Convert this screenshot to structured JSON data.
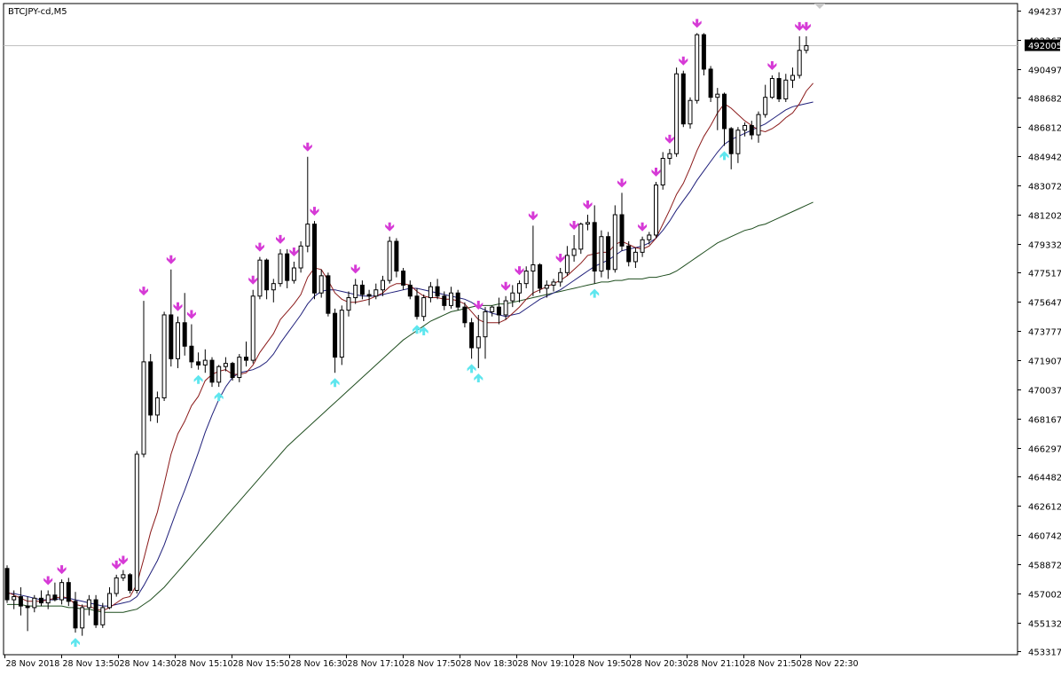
{
  "window": {
    "symbol_label": "BTCJPY-cd,M5"
  },
  "chart_data": {
    "type": "candlestick",
    "symbol": "BTCJPY-cd",
    "timeframe": "M5",
    "current_price": 492005,
    "y_ticks": [
      494237,
      492367,
      490497,
      488682,
      486812,
      484942,
      483072,
      481202,
      479332,
      477517,
      475647,
      473777,
      471907,
      470037,
      468167,
      466297,
      464482,
      462612,
      460742,
      458872,
      457002,
      455132,
      453317
    ],
    "x_ticks": [
      "28 Nov 2018",
      "28 Nov 13:50",
      "28 Nov 14:30",
      "28 Nov 15:10",
      "28 Nov 15:50",
      "28 Nov 16:30",
      "28 Nov 17:10",
      "28 Nov 17:50",
      "28 Nov 18:30",
      "28 Nov 19:10",
      "28 Nov 19:50",
      "28 Nov 20:30",
      "28 Nov 21:10",
      "28 Nov 21:50",
      "28 Nov 22:30"
    ],
    "ylim": [
      453000,
      494600
    ],
    "grid": false,
    "colors": {
      "up_body": "#ffffff",
      "down_body": "#000000",
      "wick": "#000000",
      "ma_fast": "#8b1a1a",
      "ma_mid": "#1f1f7a",
      "ma_slow": "#1e4d1e",
      "arrow_up": "#5ee6ee",
      "arrow_down": "#d63ad6",
      "price_line": "#c0c0c0",
      "price_label_bg": "#000000",
      "price_label_text": "#ffffff"
    },
    "candles": [
      {
        "o": 458600,
        "h": 458800,
        "l": 456400,
        "c": 456600
      },
      {
        "o": 456600,
        "h": 457200,
        "l": 456000,
        "c": 456800
      },
      {
        "o": 456800,
        "h": 457400,
        "l": 455600,
        "c": 456200
      },
      {
        "o": 456200,
        "h": 456800,
        "l": 454600,
        "c": 456100
      },
      {
        "o": 456100,
        "h": 456900,
        "l": 455800,
        "c": 456700
      },
      {
        "o": 456700,
        "h": 457200,
        "l": 456200,
        "c": 456400
      },
      {
        "o": 456400,
        "h": 457200,
        "l": 456000,
        "c": 456900
      },
      {
        "o": 456900,
        "h": 457700,
        "l": 456500,
        "c": 456600
      },
      {
        "o": 456600,
        "h": 457900,
        "l": 456300,
        "c": 457700
      },
      {
        "o": 457700,
        "h": 458000,
        "l": 456200,
        "c": 456500
      },
      {
        "o": 456500,
        "h": 457100,
        "l": 454500,
        "c": 454800
      },
      {
        "o": 454800,
        "h": 456300,
        "l": 454300,
        "c": 456100
      },
      {
        "o": 456100,
        "h": 456900,
        "l": 455600,
        "c": 456600
      },
      {
        "o": 456600,
        "h": 456900,
        "l": 454800,
        "c": 455000
      },
      {
        "o": 455000,
        "h": 456400,
        "l": 454800,
        "c": 456100
      },
      {
        "o": 456100,
        "h": 457400,
        "l": 456000,
        "c": 457000
      },
      {
        "o": 457000,
        "h": 458200,
        "l": 456800,
        "c": 458000
      },
      {
        "o": 458000,
        "h": 458500,
        "l": 457800,
        "c": 458200
      },
      {
        "o": 458200,
        "h": 458300,
        "l": 457000,
        "c": 457200
      },
      {
        "o": 457200,
        "h": 466100,
        "l": 457000,
        "c": 465900
      },
      {
        "o": 465900,
        "h": 475700,
        "l": 465700,
        "c": 471800
      },
      {
        "o": 471800,
        "h": 472300,
        "l": 468000,
        "c": 468400
      },
      {
        "o": 468400,
        "h": 469900,
        "l": 467900,
        "c": 469500
      },
      {
        "o": 469500,
        "h": 475000,
        "l": 469300,
        "c": 474800
      },
      {
        "o": 474800,
        "h": 477700,
        "l": 471500,
        "c": 472000
      },
      {
        "o": 472000,
        "h": 474700,
        "l": 471400,
        "c": 474300
      },
      {
        "o": 474300,
        "h": 476200,
        "l": 472200,
        "c": 472800
      },
      {
        "o": 472800,
        "h": 474200,
        "l": 471400,
        "c": 471800
      },
      {
        "o": 471800,
        "h": 472400,
        "l": 471300,
        "c": 471600
      },
      {
        "o": 471600,
        "h": 472600,
        "l": 471100,
        "c": 471900
      },
      {
        "o": 471900,
        "h": 472100,
        "l": 470200,
        "c": 470500
      },
      {
        "o": 470500,
        "h": 471600,
        "l": 470200,
        "c": 471500
      },
      {
        "o": 471500,
        "h": 472100,
        "l": 471200,
        "c": 471700
      },
      {
        "o": 471700,
        "h": 471800,
        "l": 470600,
        "c": 470800
      },
      {
        "o": 470800,
        "h": 472300,
        "l": 470500,
        "c": 472100
      },
      {
        "o": 472100,
        "h": 473100,
        "l": 471500,
        "c": 471900
      },
      {
        "o": 471900,
        "h": 476400,
        "l": 471700,
        "c": 476000
      },
      {
        "o": 476000,
        "h": 478500,
        "l": 475800,
        "c": 478300
      },
      {
        "o": 478300,
        "h": 478400,
        "l": 475800,
        "c": 476400
      },
      {
        "o": 476400,
        "h": 477100,
        "l": 475600,
        "c": 476800
      },
      {
        "o": 476800,
        "h": 479000,
        "l": 476600,
        "c": 478700
      },
      {
        "o": 478700,
        "h": 479000,
        "l": 476500,
        "c": 477000
      },
      {
        "o": 477000,
        "h": 478200,
        "l": 476800,
        "c": 477800
      },
      {
        "o": 477800,
        "h": 479500,
        "l": 477500,
        "c": 479200
      },
      {
        "o": 479200,
        "h": 484900,
        "l": 478800,
        "c": 480600
      },
      {
        "o": 480600,
        "h": 480800,
        "l": 475800,
        "c": 476200
      },
      {
        "o": 476200,
        "h": 477700,
        "l": 475900,
        "c": 477300
      },
      {
        "o": 477300,
        "h": 477500,
        "l": 474700,
        "c": 474900
      },
      {
        "o": 474900,
        "h": 475200,
        "l": 471100,
        "c": 472100
      },
      {
        "o": 472100,
        "h": 475400,
        "l": 471600,
        "c": 475100
      },
      {
        "o": 475100,
        "h": 476300,
        "l": 474700,
        "c": 475900
      },
      {
        "o": 475900,
        "h": 477100,
        "l": 475500,
        "c": 476700
      },
      {
        "o": 476700,
        "h": 477000,
        "l": 475800,
        "c": 476100
      },
      {
        "o": 476100,
        "h": 476400,
        "l": 475400,
        "c": 476000
      },
      {
        "o": 476000,
        "h": 476800,
        "l": 475800,
        "c": 476400
      },
      {
        "o": 476400,
        "h": 477300,
        "l": 476000,
        "c": 477000
      },
      {
        "o": 477000,
        "h": 479800,
        "l": 476800,
        "c": 479500
      },
      {
        "o": 479500,
        "h": 479700,
        "l": 477200,
        "c": 477600
      },
      {
        "o": 477600,
        "h": 477800,
        "l": 476400,
        "c": 476700
      },
      {
        "o": 476700,
        "h": 477000,
        "l": 475800,
        "c": 476000
      },
      {
        "o": 476000,
        "h": 476500,
        "l": 474500,
        "c": 474700
      },
      {
        "o": 474700,
        "h": 476100,
        "l": 474400,
        "c": 475900
      },
      {
        "o": 475900,
        "h": 476900,
        "l": 475600,
        "c": 476600
      },
      {
        "o": 476600,
        "h": 477100,
        "l": 475800,
        "c": 476000
      },
      {
        "o": 476000,
        "h": 476300,
        "l": 475100,
        "c": 475400
      },
      {
        "o": 475400,
        "h": 476600,
        "l": 475200,
        "c": 476200
      },
      {
        "o": 476200,
        "h": 476400,
        "l": 475100,
        "c": 475300
      },
      {
        "o": 475300,
        "h": 475600,
        "l": 474000,
        "c": 474300
      },
      {
        "o": 474300,
        "h": 474600,
        "l": 472000,
        "c": 472700
      },
      {
        "o": 472700,
        "h": 474800,
        "l": 471400,
        "c": 473400
      },
      {
        "o": 473400,
        "h": 475300,
        "l": 472000,
        "c": 475000
      },
      {
        "o": 475000,
        "h": 475400,
        "l": 474700,
        "c": 475300
      },
      {
        "o": 475300,
        "h": 475900,
        "l": 474200,
        "c": 474800
      },
      {
        "o": 474800,
        "h": 476000,
        "l": 474500,
        "c": 475700
      },
      {
        "o": 475700,
        "h": 476700,
        "l": 475300,
        "c": 476200
      },
      {
        "o": 476200,
        "h": 477000,
        "l": 475600,
        "c": 476800
      },
      {
        "o": 476800,
        "h": 477900,
        "l": 476500,
        "c": 477600
      },
      {
        "o": 477600,
        "h": 480500,
        "l": 476000,
        "c": 478000
      },
      {
        "o": 478000,
        "h": 478100,
        "l": 476200,
        "c": 476500
      },
      {
        "o": 476500,
        "h": 477000,
        "l": 475900,
        "c": 476700
      },
      {
        "o": 476700,
        "h": 477100,
        "l": 476300,
        "c": 476900
      },
      {
        "o": 476900,
        "h": 477800,
        "l": 476600,
        "c": 477500
      },
      {
        "o": 477500,
        "h": 479200,
        "l": 477300,
        "c": 478600
      },
      {
        "o": 478600,
        "h": 479900,
        "l": 478200,
        "c": 479000
      },
      {
        "o": 479000,
        "h": 480700,
        "l": 478700,
        "c": 480600
      },
      {
        "o": 480600,
        "h": 481200,
        "l": 480200,
        "c": 480700
      },
      {
        "o": 480700,
        "h": 481800,
        "l": 476800,
        "c": 477600
      },
      {
        "o": 477600,
        "h": 480200,
        "l": 477200,
        "c": 479800
      },
      {
        "o": 479800,
        "h": 480100,
        "l": 477100,
        "c": 477700
      },
      {
        "o": 477700,
        "h": 481800,
        "l": 477500,
        "c": 481200
      },
      {
        "o": 481200,
        "h": 482600,
        "l": 478900,
        "c": 479200
      },
      {
        "o": 479200,
        "h": 479500,
        "l": 477900,
        "c": 478200
      },
      {
        "o": 478200,
        "h": 479100,
        "l": 477800,
        "c": 478800
      },
      {
        "o": 478800,
        "h": 479800,
        "l": 478500,
        "c": 479600
      },
      {
        "o": 479600,
        "h": 480100,
        "l": 479300,
        "c": 479900
      },
      {
        "o": 479900,
        "h": 483300,
        "l": 479700,
        "c": 483100
      },
      {
        "o": 483100,
        "h": 485200,
        "l": 482800,
        "c": 484800
      },
      {
        "o": 484800,
        "h": 485400,
        "l": 484400,
        "c": 485100
      },
      {
        "o": 485100,
        "h": 490600,
        "l": 484900,
        "c": 490200
      },
      {
        "o": 490200,
        "h": 490400,
        "l": 486800,
        "c": 487000
      },
      {
        "o": 487000,
        "h": 488700,
        "l": 486700,
        "c": 488500
      },
      {
        "o": 488500,
        "h": 492800,
        "l": 488300,
        "c": 492700
      },
      {
        "o": 492700,
        "h": 492800,
        "l": 490100,
        "c": 490500
      },
      {
        "o": 490500,
        "h": 490700,
        "l": 488400,
        "c": 488700
      },
      {
        "o": 488700,
        "h": 489300,
        "l": 486600,
        "c": 488900
      },
      {
        "o": 488900,
        "h": 489000,
        "l": 485600,
        "c": 486700
      },
      {
        "o": 486700,
        "h": 486800,
        "l": 484100,
        "c": 485100
      },
      {
        "o": 485100,
        "h": 486800,
        "l": 484500,
        "c": 486600
      },
      {
        "o": 486600,
        "h": 487100,
        "l": 486200,
        "c": 486900
      },
      {
        "o": 486900,
        "h": 487200,
        "l": 486000,
        "c": 486300
      },
      {
        "o": 486300,
        "h": 487800,
        "l": 485800,
        "c": 487600
      },
      {
        "o": 487600,
        "h": 489500,
        "l": 487400,
        "c": 488700
      },
      {
        "o": 488700,
        "h": 490100,
        "l": 488600,
        "c": 489900
      },
      {
        "o": 489900,
        "h": 490300,
        "l": 488400,
        "c": 488600
      },
      {
        "o": 488600,
        "h": 490200,
        "l": 488400,
        "c": 489800
      },
      {
        "o": 489800,
        "h": 490600,
        "l": 489300,
        "c": 490100
      },
      {
        "o": 490100,
        "h": 492600,
        "l": 489900,
        "c": 491700
      },
      {
        "o": 491700,
        "h": 492600,
        "l": 491500,
        "c": 492000
      }
    ],
    "ma_fast": [
      457100,
      456900,
      456700,
      456500,
      456500,
      456500,
      456600,
      456700,
      456800,
      456700,
      456300,
      456200,
      456200,
      456000,
      455900,
      456100,
      456400,
      456700,
      456800,
      457600,
      459200,
      460900,
      462200,
      464000,
      465900,
      467200,
      468000,
      469000,
      469600,
      470600,
      471000,
      471200,
      471300,
      471000,
      471000,
      471100,
      471600,
      472400,
      473000,
      473600,
      474500,
      475000,
      475500,
      476100,
      477200,
      477800,
      477700,
      477000,
      476200,
      475800,
      475600,
      475600,
      475700,
      475800,
      476000,
      476200,
      476600,
      476800,
      476800,
      476700,
      476300,
      476000,
      475900,
      475900,
      475800,
      475800,
      475700,
      475500,
      475000,
      474500,
      474300,
      474300,
      474300,
      474500,
      474900,
      475300,
      475800,
      476200,
      476400,
      476600,
      476800,
      477000,
      477300,
      477700,
      478100,
      478600,
      478700,
      478800,
      478800,
      479300,
      479500,
      479300,
      479100,
      479000,
      479200,
      479700,
      480600,
      481500,
      482500,
      483200,
      484200,
      485300,
      486200,
      486900,
      487700,
      488300,
      488000,
      487600,
      487200,
      486900,
      486600,
      486500,
      486700,
      487000,
      487400,
      487700,
      488300,
      489100,
      489600
    ],
    "ma_mid": [
      457000,
      457000,
      456900,
      456800,
      456700,
      456600,
      456600,
      456600,
      456700,
      456700,
      456600,
      456500,
      456400,
      456300,
      456200,
      456200,
      456300,
      456400,
      456500,
      456800,
      457500,
      458300,
      459100,
      460100,
      461300,
      462500,
      463600,
      464800,
      466000,
      467300,
      468400,
      469400,
      470200,
      470800,
      471100,
      471200,
      471300,
      471500,
      471800,
      472300,
      473000,
      473600,
      474200,
      474800,
      475500,
      476000,
      476300,
      476400,
      476400,
      476300,
      476200,
      476100,
      476000,
      476000,
      476000,
      476100,
      476200,
      476300,
      476400,
      476500,
      476500,
      476400,
      476300,
      476200,
      476100,
      476000,
      475900,
      475800,
      475600,
      475300,
      475100,
      474900,
      474800,
      474700,
      474800,
      474900,
      475200,
      475500,
      475800,
      476000,
      476200,
      476400,
      476700,
      477000,
      477300,
      477600,
      477900,
      478100,
      478300,
      478600,
      478900,
      479000,
      479100,
      479200,
      479400,
      479700,
      480200,
      480800,
      481500,
      482100,
      482700,
      483400,
      484000,
      484600,
      485200,
      485700,
      486000,
      486200,
      486400,
      486600,
      486800,
      487000,
      487300,
      487600,
      487900,
      488100,
      488200,
      488300,
      488400
    ],
    "ma_slow": [
      456300,
      456300,
      456300,
      456200,
      456200,
      456200,
      456200,
      456200,
      456200,
      456100,
      456100,
      456000,
      456000,
      455900,
      455800,
      455800,
      455800,
      455800,
      455900,
      456000,
      456300,
      456600,
      457000,
      457400,
      457900,
      458400,
      458900,
      459400,
      459900,
      460400,
      460900,
      461400,
      461900,
      462400,
      462900,
      463400,
      463900,
      464400,
      464900,
      465400,
      465900,
      466400,
      466800,
      467200,
      467600,
      468000,
      468400,
      468800,
      469200,
      469600,
      470000,
      470400,
      470800,
      471200,
      471600,
      472000,
      472400,
      472800,
      473200,
      473500,
      473800,
      474100,
      474400,
      474600,
      474800,
      475000,
      475100,
      475200,
      475300,
      475400,
      475400,
      475400,
      475500,
      475500,
      475600,
      475700,
      475800,
      475900,
      476000,
      476100,
      476200,
      476300,
      476400,
      476500,
      476600,
      476700,
      476800,
      476900,
      476900,
      477000,
      477000,
      477100,
      477100,
      477100,
      477200,
      477200,
      477300,
      477400,
      477600,
      477900,
      478200,
      478500,
      478800,
      479100,
      479400,
      479600,
      479800,
      480000,
      480200,
      480300,
      480500,
      480600,
      480800,
      481000,
      481200,
      481400,
      481600,
      481800,
      482000
    ],
    "down_arrows": [
      6,
      8,
      16,
      17,
      20,
      24,
      25,
      27,
      36,
      37,
      40,
      42,
      44,
      45,
      51,
      56,
      69,
      73,
      75,
      77,
      81,
      83,
      85,
      90,
      93,
      95,
      97,
      99,
      101,
      112,
      116,
      117
    ],
    "up_arrows": [
      10,
      28,
      31,
      48,
      60,
      61,
      68,
      69,
      86,
      105
    ]
  }
}
